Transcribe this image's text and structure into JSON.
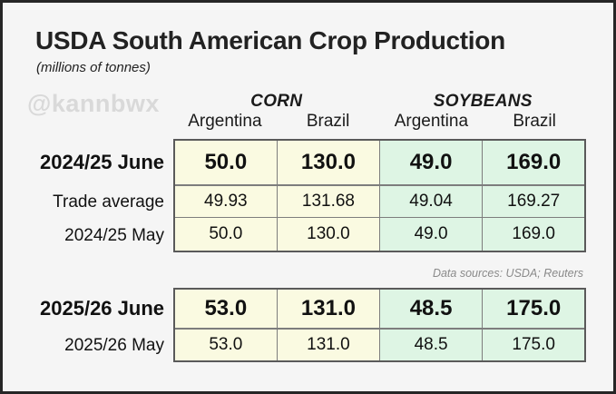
{
  "title": "USDA South American Crop Production",
  "subtitle": "(millions of tonnes)",
  "watermark": "@kannbwx",
  "note": "Data sources: USDA; Reuters",
  "header": {
    "groups": [
      {
        "label": "CORN"
      },
      {
        "label": "SOYBEANS"
      }
    ],
    "columns": [
      "Argentina",
      "Brazil",
      "Argentina",
      "Brazil"
    ]
  },
  "tables": [
    {
      "rows": [
        {
          "label": "2024/25 June",
          "emphasis": true,
          "values": [
            "50.0",
            "130.0",
            "49.0",
            "169.0"
          ]
        },
        {
          "label": "Trade average",
          "emphasis": false,
          "values": [
            "49.93",
            "131.68",
            "49.04",
            "169.27"
          ]
        },
        {
          "label": "2024/25 May",
          "emphasis": false,
          "values": [
            "50.0",
            "130.0",
            "49.0",
            "169.0"
          ]
        }
      ]
    },
    {
      "rows": [
        {
          "label": "2025/26 June",
          "emphasis": true,
          "values": [
            "53.0",
            "131.0",
            "48.5",
            "175.0"
          ]
        },
        {
          "label": "2025/26 May",
          "emphasis": false,
          "values": [
            "53.0",
            "131.0",
            "48.5",
            "175.0"
          ]
        }
      ]
    }
  ],
  "colors": {
    "corn_bg": "#fafae1",
    "soy_bg": "#def5e4",
    "table_border": "#5a5a5a",
    "grid_line": "#7d7d7d",
    "watermark": "#d9d9d9",
    "note_text": "#8a8a8a",
    "background": "#f5f5f5",
    "frame_border": "#262626"
  },
  "chart_data": {
    "type": "table",
    "title": "USDA South American Crop Production",
    "units": "millions of tonnes",
    "column_groups": [
      "CORN",
      "CORN",
      "SOYBEANS",
      "SOYBEANS"
    ],
    "columns": [
      "Argentina (Corn)",
      "Brazil (Corn)",
      "Argentina (Soybeans)",
      "Brazil (Soybeans)"
    ],
    "rows": [
      {
        "label": "2024/25 June",
        "values": [
          50.0,
          130.0,
          49.0,
          169.0
        ]
      },
      {
        "label": "Trade average",
        "values": [
          49.93,
          131.68,
          49.04,
          169.27
        ]
      },
      {
        "label": "2024/25 May",
        "values": [
          50.0,
          130.0,
          49.0,
          169.0
        ]
      },
      {
        "label": "2025/26 June",
        "values": [
          53.0,
          131.0,
          48.5,
          175.0
        ]
      },
      {
        "label": "2025/26 May",
        "values": [
          53.0,
          131.0,
          48.5,
          175.0
        ]
      }
    ],
    "sources": "USDA; Reuters"
  }
}
